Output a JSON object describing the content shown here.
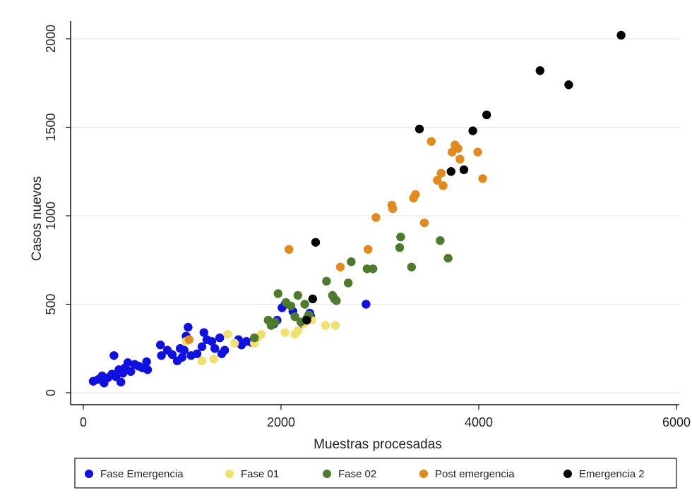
{
  "chart_data": {
    "type": "scatter",
    "xlabel": "Muestras procesadas",
    "ylabel": "Casos nuevos",
    "xlim": [
      0,
      6000
    ],
    "ylim": [
      0,
      2000
    ],
    "xticks": [
      0,
      2000,
      4000,
      6000
    ],
    "xtick_labels": [
      "0",
      "2000",
      "4000",
      "6000"
    ],
    "yticks": [
      0,
      500,
      1000,
      1500,
      2000
    ],
    "ytick_labels": [
      "0",
      "500",
      "1000",
      "1500",
      "2000"
    ],
    "grid": true,
    "legend_position": "bottom",
    "series": [
      {
        "name": "Fase Emergencia",
        "color": "#1010e0",
        "points": [
          [
            100,
            65
          ],
          [
            150,
            75
          ],
          [
            190,
            95
          ],
          [
            210,
            55
          ],
          [
            250,
            85
          ],
          [
            290,
            105
          ],
          [
            310,
            210
          ],
          [
            330,
            90
          ],
          [
            360,
            130
          ],
          [
            380,
            60
          ],
          [
            400,
            110
          ],
          [
            420,
            140
          ],
          [
            450,
            170
          ],
          [
            480,
            120
          ],
          [
            520,
            160
          ],
          [
            560,
            150
          ],
          [
            600,
            140
          ],
          [
            640,
            175
          ],
          [
            650,
            130
          ],
          [
            780,
            270
          ],
          [
            790,
            210
          ],
          [
            850,
            240
          ],
          [
            900,
            215
          ],
          [
            950,
            180
          ],
          [
            980,
            250
          ],
          [
            1000,
            200
          ],
          [
            1020,
            240
          ],
          [
            1040,
            320
          ],
          [
            1060,
            370
          ],
          [
            1090,
            210
          ],
          [
            1150,
            220
          ],
          [
            1200,
            260
          ],
          [
            1220,
            340
          ],
          [
            1250,
            300
          ],
          [
            1300,
            290
          ],
          [
            1330,
            250
          ],
          [
            1380,
            310
          ],
          [
            1400,
            220
          ],
          [
            1430,
            240
          ],
          [
            1570,
            300
          ],
          [
            1600,
            270
          ],
          [
            1650,
            290
          ],
          [
            1700,
            285
          ],
          [
            1930,
            390
          ],
          [
            1960,
            410
          ],
          [
            2010,
            480
          ],
          [
            2040,
            500
          ],
          [
            2120,
            460
          ],
          [
            2220,
            390
          ],
          [
            2290,
            450
          ],
          [
            2300,
            430
          ],
          [
            2860,
            500
          ]
        ]
      },
      {
        "name": "Fase 01",
        "color": "#f0e070",
        "points": [
          [
            1040,
            290
          ],
          [
            1200,
            180
          ],
          [
            1320,
            190
          ],
          [
            1460,
            330
          ],
          [
            1530,
            280
          ],
          [
            1730,
            280
          ],
          [
            1760,
            310
          ],
          [
            1800,
            330
          ],
          [
            2040,
            340
          ],
          [
            2140,
            330
          ],
          [
            2170,
            350
          ],
          [
            2230,
            390
          ],
          [
            2310,
            410
          ],
          [
            2450,
            380
          ],
          [
            2550,
            380
          ]
        ]
      },
      {
        "name": "Fase 02",
        "color": "#4e7a2e",
        "points": [
          [
            1730,
            310
          ],
          [
            1870,
            410
          ],
          [
            1900,
            380
          ],
          [
            1940,
            400
          ],
          [
            1970,
            560
          ],
          [
            2050,
            510
          ],
          [
            2100,
            490
          ],
          [
            2140,
            430
          ],
          [
            2170,
            550
          ],
          [
            2200,
            400
          ],
          [
            2240,
            500
          ],
          [
            2260,
            420
          ],
          [
            2280,
            440
          ],
          [
            2460,
            630
          ],
          [
            2520,
            550
          ],
          [
            2540,
            530
          ],
          [
            2560,
            520
          ],
          [
            2680,
            620
          ],
          [
            2710,
            740
          ],
          [
            2870,
            700
          ],
          [
            2930,
            700
          ],
          [
            3200,
            820
          ],
          [
            3210,
            880
          ],
          [
            3320,
            710
          ],
          [
            3610,
            860
          ],
          [
            3690,
            760
          ]
        ]
      },
      {
        "name": "Post emergencia",
        "color": "#e08a20",
        "points": [
          [
            1070,
            300
          ],
          [
            2080,
            810
          ],
          [
            2600,
            710
          ],
          [
            2880,
            810
          ],
          [
            2960,
            990
          ],
          [
            3120,
            1060
          ],
          [
            3130,
            1040
          ],
          [
            3340,
            1100
          ],
          [
            3360,
            1120
          ],
          [
            3450,
            960
          ],
          [
            3520,
            1420
          ],
          [
            3580,
            1200
          ],
          [
            3620,
            1240
          ],
          [
            3640,
            1170
          ],
          [
            3730,
            1360
          ],
          [
            3760,
            1400
          ],
          [
            3790,
            1380
          ],
          [
            3810,
            1320
          ],
          [
            3990,
            1360
          ],
          [
            4040,
            1210
          ]
        ]
      },
      {
        "name": "Emergencia 2",
        "color": "#050505",
        "points": [
          [
            2260,
            410
          ],
          [
            2320,
            530
          ],
          [
            2350,
            850
          ],
          [
            3400,
            1490
          ],
          [
            3720,
            1250
          ],
          [
            3850,
            1260
          ],
          [
            3940,
            1480
          ],
          [
            4080,
            1570
          ],
          [
            4620,
            1820
          ],
          [
            4910,
            1740
          ],
          [
            5440,
            2020
          ]
        ]
      }
    ]
  }
}
